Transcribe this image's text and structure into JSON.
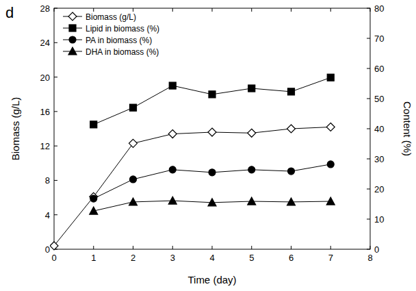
{
  "chart_data": {
    "type": "line",
    "title": "d",
    "x_label": "Time (day)",
    "y_label": "Biomass (g/L)",
    "y2_label": "Content (%)",
    "x": [
      0,
      1,
      2,
      3,
      4,
      5,
      6,
      7
    ],
    "xlim": [
      0,
      8
    ],
    "xticks": [
      0,
      1,
      2,
      3,
      4,
      5,
      6,
      7,
      8
    ],
    "ylim": [
      0,
      28
    ],
    "yticks": [
      0,
      4,
      8,
      12,
      16,
      20,
      24,
      28
    ],
    "y2lim": [
      0,
      80
    ],
    "y2ticks": [
      0,
      10,
      20,
      30,
      40,
      50,
      60,
      70,
      80
    ],
    "legend": "upper-left",
    "series": [
      {
        "name": "Biomass (g/L)",
        "color": "#000000",
        "marker": "diamond-open",
        "values": [
          0.4,
          6.1,
          12.3,
          13.4,
          13.6,
          13.5,
          14.0,
          14.2
        ]
      },
      {
        "name": "Lipid in biomass (%)",
        "color": "#000000",
        "marker": "square",
        "axis": "y2",
        "values": [
          null,
          41.4,
          47.0,
          54.3,
          51.4,
          53.4,
          52.3,
          57.0
        ]
      },
      {
        "name": "PA in biomass (%)",
        "color": "#000000",
        "marker": "circle",
        "axis": "y2",
        "values": [
          null,
          16.8,
          23.2,
          26.4,
          25.5,
          26.4,
          25.9,
          28.2
        ]
      },
      {
        "name": "DHA in biomass (%)",
        "color": "#000000",
        "marker": "triangle",
        "axis": "y2",
        "values": [
          null,
          12.7,
          15.7,
          16.1,
          15.5,
          15.9,
          15.7,
          15.9
        ]
      }
    ]
  }
}
